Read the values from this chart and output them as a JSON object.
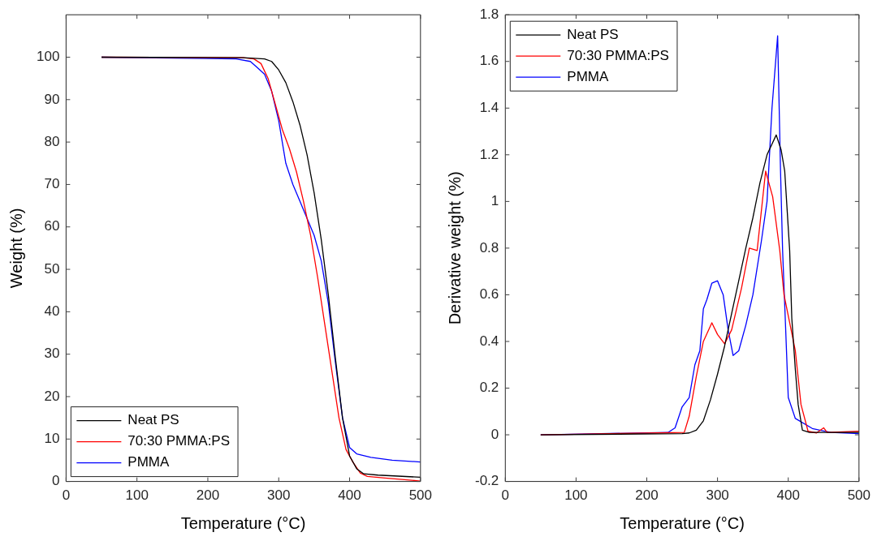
{
  "chart_data": [
    {
      "type": "line",
      "xlabel": "Temperature (°C)",
      "ylabel": "Weight (%)",
      "xlim": [
        0,
        500
      ],
      "xticks": [
        0,
        100,
        200,
        300,
        400,
        500
      ],
      "ylim": [
        0,
        110
      ],
      "yticks": [
        0,
        10,
        20,
        30,
        40,
        50,
        60,
        70,
        80,
        90,
        100
      ],
      "legend": "bottom left",
      "marker": "none",
      "line_style": "solid",
      "series": [
        {
          "name": "Neat PS",
          "color": "#000000",
          "x": [
            50,
            250,
            280,
            290,
            300,
            310,
            320,
            330,
            340,
            350,
            360,
            370,
            380,
            390,
            400,
            410,
            420,
            440,
            500
          ],
          "values": [
            100,
            99.9,
            99.6,
            99,
            97,
            94,
            89.5,
            84,
            77,
            68,
            57,
            44,
            29,
            15,
            6,
            3,
            1.8,
            1.5,
            1.0
          ]
        },
        {
          "name": "70:30 PMMA:PS",
          "color": "#ff0000",
          "x": [
            50,
            250,
            265,
            275,
            285,
            295,
            305,
            315,
            325,
            335,
            345,
            355,
            365,
            375,
            385,
            395,
            405,
            415,
            425,
            450,
            500
          ],
          "values": [
            100,
            99.9,
            99.6,
            98.5,
            95,
            89,
            83,
            78.5,
            73,
            66,
            58,
            48,
            37,
            26,
            15,
            7.5,
            4.5,
            2,
            1.2,
            0.8,
            0.1
          ]
        },
        {
          "name": "PMMA",
          "color": "#0000ff",
          "x": [
            50,
            240,
            260,
            270,
            280,
            290,
            300,
            305,
            310,
            320,
            330,
            340,
            350,
            360,
            370,
            380,
            390,
            400,
            410,
            430,
            460,
            500
          ],
          "values": [
            100,
            99.6,
            99,
            97.5,
            96,
            92,
            85,
            80,
            75,
            70,
            66,
            62,
            58,
            52,
            42,
            28,
            15,
            8,
            6.5,
            5.7,
            5,
            4.6
          ]
        }
      ]
    },
    {
      "type": "line",
      "xlabel": "Temperature (°C)",
      "ylabel": "Derivative weight (%)",
      "xlim": [
        0,
        500
      ],
      "xticks": [
        0,
        100,
        200,
        300,
        400,
        500
      ],
      "ylim": [
        -0.2,
        1.8
      ],
      "yticks": [
        -0.2,
        0,
        0.2,
        0.4,
        0.6,
        0.8,
        1,
        1.2,
        1.4,
        1.6,
        1.8
      ],
      "legend": "top left",
      "marker": "none",
      "line_style": "solid",
      "series": [
        {
          "name": "Neat PS",
          "color": "#000000",
          "x": [
            50,
            250,
            260,
            270,
            280,
            290,
            300,
            310,
            320,
            330,
            340,
            350,
            360,
            370,
            383,
            390,
            395,
            402,
            405,
            410,
            414,
            420,
            430,
            500
          ],
          "values": [
            0,
            0.005,
            0.008,
            0.02,
            0.06,
            0.15,
            0.26,
            0.38,
            0.52,
            0.66,
            0.8,
            0.93,
            1.08,
            1.2,
            1.285,
            1.22,
            1.13,
            0.79,
            0.5,
            0.28,
            0.13,
            0.02,
            0.01,
            0.01
          ]
        },
        {
          "name": "70:30 PMMA:PS",
          "color": "#ff0000",
          "x": [
            50,
            253,
            260,
            270,
            280,
            292,
            300,
            310,
            320,
            334,
            345,
            356,
            368,
            378,
            388,
            394,
            410,
            418,
            428,
            440,
            450,
            455,
            500
          ],
          "values": [
            0,
            0.01,
            0.08,
            0.25,
            0.4,
            0.48,
            0.43,
            0.39,
            0.45,
            0.63,
            0.8,
            0.79,
            1.13,
            1.02,
            0.79,
            0.6,
            0.36,
            0.13,
            0.015,
            0.008,
            0.03,
            0.01,
            0.015
          ]
        },
        {
          "name": "PMMA",
          "color": "#0000ff",
          "x": [
            50,
            230,
            240,
            250,
            260,
            268,
            275,
            280,
            285,
            292,
            300,
            308,
            315,
            322,
            330,
            340,
            350,
            362,
            370,
            377,
            385,
            389,
            392,
            396,
            400,
            410,
            434,
            460,
            500
          ],
          "values": [
            0,
            0.01,
            0.03,
            0.12,
            0.16,
            0.3,
            0.36,
            0.54,
            0.58,
            0.65,
            0.66,
            0.6,
            0.45,
            0.34,
            0.36,
            0.47,
            0.6,
            0.83,
            1.0,
            1.4,
            1.71,
            1.14,
            0.79,
            0.48,
            0.16,
            0.07,
            0.027,
            0.01,
            0.005
          ]
        }
      ]
    }
  ]
}
